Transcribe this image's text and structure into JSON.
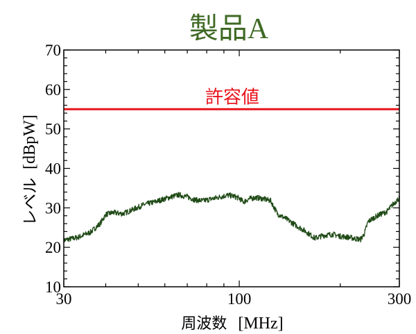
{
  "chart_data": {
    "type": "line",
    "title": "製品A",
    "xlabel_main": "周波数",
    "xlabel_unit": "[MHz]",
    "ylabel_main": "レベル",
    "ylabel_unit": "[dBpW]",
    "x_scale": "log",
    "xlim": [
      30,
      300
    ],
    "ylim": [
      10,
      70
    ],
    "x_ticks": [
      {
        "value": 30,
        "label": "30"
      },
      {
        "value": 100,
        "label": "100"
      },
      {
        "value": 300,
        "label": "300"
      }
    ],
    "y_ticks": [
      {
        "value": 10,
        "label": "10"
      },
      {
        "value": 20,
        "label": "20"
      },
      {
        "value": 30,
        "label": "30"
      },
      {
        "value": 40,
        "label": "40"
      },
      {
        "value": 50,
        "label": "50"
      },
      {
        "value": 60,
        "label": "60"
      },
      {
        "value": 70,
        "label": "70"
      }
    ],
    "grid": false,
    "limit_line": {
      "label": "許容値",
      "value": 55,
      "color": "#e8141c"
    },
    "series": [
      {
        "color": "#1f4a16",
        "noise_amplitude": 0.7,
        "points": [
          [
            30,
            21.8
          ],
          [
            33,
            22.5
          ],
          [
            36,
            23.8
          ],
          [
            38.5,
            26.0
          ],
          [
            40,
            28.3
          ],
          [
            42,
            28.8
          ],
          [
            45,
            28.5
          ],
          [
            48,
            29.5
          ],
          [
            52,
            30.8
          ],
          [
            56,
            31.5
          ],
          [
            60,
            32.3
          ],
          [
            64,
            33.0
          ],
          [
            66,
            33.3
          ],
          [
            70,
            32.8
          ],
          [
            74,
            32.0
          ],
          [
            78,
            31.8
          ],
          [
            83,
            32.3
          ],
          [
            88,
            32.8
          ],
          [
            92,
            33.2
          ],
          [
            96,
            33.0
          ],
          [
            100,
            32.4
          ],
          [
            103,
            31.5
          ],
          [
            107,
            32.3
          ],
          [
            112,
            32.6
          ],
          [
            118,
            32.3
          ],
          [
            124,
            31.8
          ],
          [
            130,
            28.5
          ],
          [
            138,
            27.2
          ],
          [
            148,
            25.5
          ],
          [
            158,
            24.0
          ],
          [
            168,
            22.3
          ],
          [
            178,
            23.0
          ],
          [
            190,
            23.3
          ],
          [
            200,
            22.8
          ],
          [
            210,
            22.6
          ],
          [
            222,
            22.2
          ],
          [
            230,
            22.0
          ],
          [
            236,
            23.5
          ],
          [
            242,
            26.5
          ],
          [
            252,
            27.5
          ],
          [
            262,
            28.3
          ],
          [
            275,
            29.0
          ],
          [
            288,
            31.0
          ],
          [
            300,
            32.5
          ]
        ]
      }
    ]
  }
}
